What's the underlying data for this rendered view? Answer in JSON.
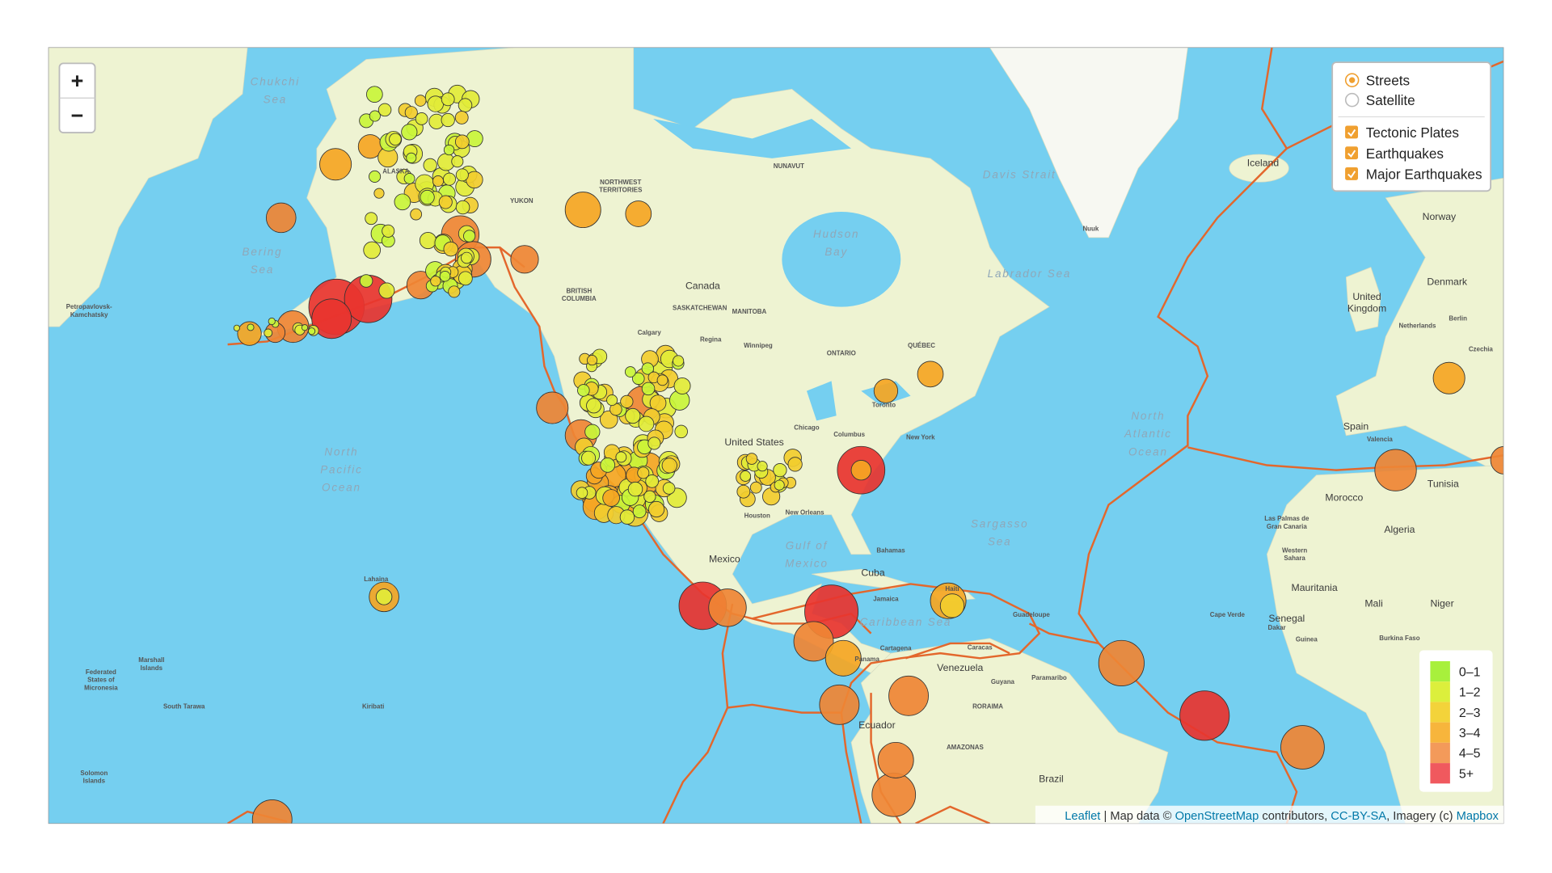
{
  "zoom_controls": [
    "+",
    "−"
  ],
  "layer_control": {
    "base_layers": [
      "Streets",
      "Satellite"
    ],
    "overlays": [
      "Tectonic Plates",
      "Earthquakes",
      "Major Earthquakes"
    ]
  },
  "legend": [
    "0–1",
    "1–2",
    "2–3",
    "3–4",
    "4–5",
    "5+"
  ],
  "attribution": [
    {
      "text": "Leaflet",
      "link": true
    },
    {
      "text": " | Map data © ",
      "link": false
    },
    {
      "text": "OpenStreetMap",
      "link": true
    },
    {
      "text": " contributors, ",
      "link": false
    },
    {
      "text": "CC-BY-SA",
      "link": true
    },
    {
      "text": ", Imagery (c) ",
      "link": false
    },
    {
      "text": "Mapbox",
      "link": true
    }
  ],
  "map_labels": [
    [
      "Chukchi",
      "Sea"
    ],
    [
      "Bering",
      "Sea"
    ],
    [
      "North",
      "Pacific",
      "Ocean"
    ],
    [
      "North",
      "Atlantic",
      "Ocean"
    ],
    [
      "Hudson",
      "Bay"
    ],
    [
      "Sargasso",
      "Sea"
    ],
    [
      "Caribbean Sea"
    ],
    [
      "Labrador Sea"
    ],
    [
      "Davis Strait"
    ],
    [
      "Gulf of",
      "Mexico"
    ],
    [
      "Canada"
    ],
    [
      "United States"
    ],
    [
      "Mexico"
    ],
    [
      "Venezuela"
    ],
    [
      "Brazil"
    ],
    [
      "Algeria"
    ],
    [
      "Morocco"
    ],
    [
      "Mauritania"
    ],
    [
      "Mali"
    ],
    [
      "Niger"
    ],
    [
      "Senegal"
    ],
    [
      "Spain"
    ],
    [
      "Tunisia"
    ],
    [
      "United",
      "Kingdom"
    ],
    [
      "Denmark"
    ],
    [
      "Norway"
    ],
    [
      "Iceland"
    ],
    [
      "Cuba"
    ],
    [
      "Ecuador"
    ],
    [
      "Lahaina"
    ],
    [
      "Marshall",
      "Islands"
    ],
    [
      "Federated",
      "States of",
      "Micronesia"
    ],
    [
      "South Tarawa"
    ],
    [
      "Kiribati"
    ],
    [
      "Solomon",
      "Islands"
    ],
    [
      "NUNAVUT"
    ],
    [
      "NORTHWEST",
      "TERRITORIES"
    ],
    [
      "YUKON"
    ],
    [
      "ALASKA"
    ],
    [
      "BRITISH",
      "COLUMBIA"
    ],
    [
      "SASKATCHEWAN"
    ],
    [
      "MANITOBA"
    ],
    [
      "ONTARIO"
    ],
    [
      "QUÉBEC"
    ],
    [
      "Calgary"
    ],
    [
      "Regina"
    ],
    [
      "Winnipeg"
    ],
    [
      "Houston"
    ],
    [
      "New Orleans"
    ],
    [
      "Chicago"
    ],
    [
      "Toronto"
    ],
    [
      "New York"
    ],
    [
      "Columbus"
    ],
    [
      "Bahamas"
    ],
    [
      "Jamaica"
    ],
    [
      "Haiti"
    ],
    [
      "Caracas"
    ],
    [
      "Guyana"
    ],
    [
      "Paramaribo"
    ],
    [
      "Guadeloupe"
    ],
    [
      "Cartagena"
    ],
    [
      "Panama"
    ],
    [
      "AMAZONAS"
    ],
    [
      "RORAIMA"
    ],
    [
      "Cape Verde"
    ],
    [
      "Las Palmas de",
      "Gran Canaria"
    ],
    [
      "Western",
      "Sahara"
    ],
    [
      "Dakar"
    ],
    [
      "Burkina Faso"
    ],
    [
      "Guinea"
    ],
    [
      "Berlin"
    ],
    [
      "Netherlands"
    ],
    [
      "Czechia"
    ],
    [
      "Valencia"
    ],
    [
      "Petropavlovsk-",
      "Kamchatsky"
    ],
    [
      "Nuuk"
    ]
  ]
}
